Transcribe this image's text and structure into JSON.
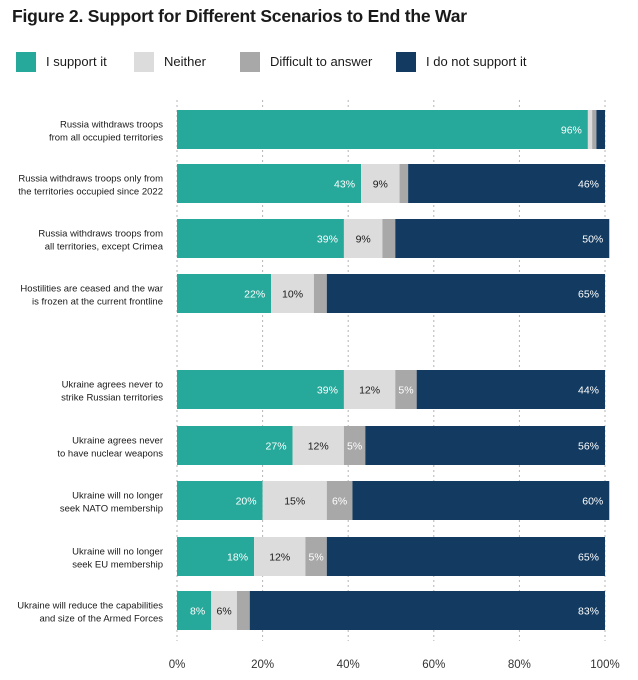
{
  "title": "Figure 2. Support for Different Scenarios to End the War",
  "legend": [
    {
      "label": "I support it",
      "color": "#26a99a"
    },
    {
      "label": "Neither",
      "color": "#dcdcdc"
    },
    {
      "label": "Difficult to answer",
      "color": "#a8a8a8"
    },
    {
      "label": "I do not support it",
      "color": "#133a60"
    }
  ],
  "chart_data": {
    "type": "bar",
    "orientation": "horizontal",
    "stacked": true,
    "title": "Figure 2. Support for Different Scenarios to End the War",
    "xlim": [
      0,
      100
    ],
    "x_ticks": [
      "0%",
      "20%",
      "40%",
      "60%",
      "80%",
      "100%"
    ],
    "grid": "vertical dashed",
    "legend_position": "top",
    "categories": [
      [
        "Russia withdraws troops",
        "from all occupied territories"
      ],
      [
        "Russia withdraws troops only from",
        "the territories occupied since 2022"
      ],
      [
        "Russia withdraws troops from",
        "all territories, except Crimea"
      ],
      [
        "Hostilities are ceased and the war",
        "is frozen at the current frontline"
      ],
      [
        "Ukraine agrees never to",
        "strike Russian territories"
      ],
      [
        "Ukraine agrees never",
        "to have nuclear weapons"
      ],
      [
        "Ukraine will no longer",
        "seek NATO membership"
      ],
      [
        "Ukraine will no longer",
        "seek EU membership"
      ],
      [
        "Ukraine will reduce the capabilities",
        "and size of the Armed Forces"
      ]
    ],
    "series": [
      {
        "name": "I support it",
        "color": "#26a99a",
        "label_color": "#ffffff",
        "values": [
          96,
          43,
          39,
          22,
          39,
          27,
          20,
          18,
          8
        ],
        "labels": [
          "96%",
          "43%",
          "39%",
          "22%",
          "39%",
          "27%",
          "20%",
          "18%",
          "8%"
        ]
      },
      {
        "name": "Neither",
        "color": "#dcdcdc",
        "label_color": "#1a1a1a",
        "values": [
          1,
          9,
          9,
          10,
          12,
          12,
          15,
          12,
          6
        ],
        "labels": [
          "",
          "9%",
          "9%",
          "10%",
          "12%",
          "12%",
          "15%",
          "12%",
          "6%"
        ]
      },
      {
        "name": "Difficult to answer",
        "color": "#a8a8a8",
        "label_color": "#ffffff",
        "values": [
          1,
          2,
          3,
          3,
          5,
          5,
          6,
          5,
          3
        ],
        "labels": [
          "",
          "",
          "",
          "",
          "5%",
          "5%",
          "6%",
          "5%",
          ""
        ]
      },
      {
        "name": "I do not support it",
        "color": "#133a60",
        "label_color": "#ffffff",
        "values": [
          2,
          46,
          50,
          65,
          44,
          56,
          60,
          65,
          83
        ],
        "labels": [
          "",
          "46%",
          "50%",
          "65%",
          "44%",
          "56%",
          "60%",
          "65%",
          "83%"
        ]
      }
    ]
  }
}
